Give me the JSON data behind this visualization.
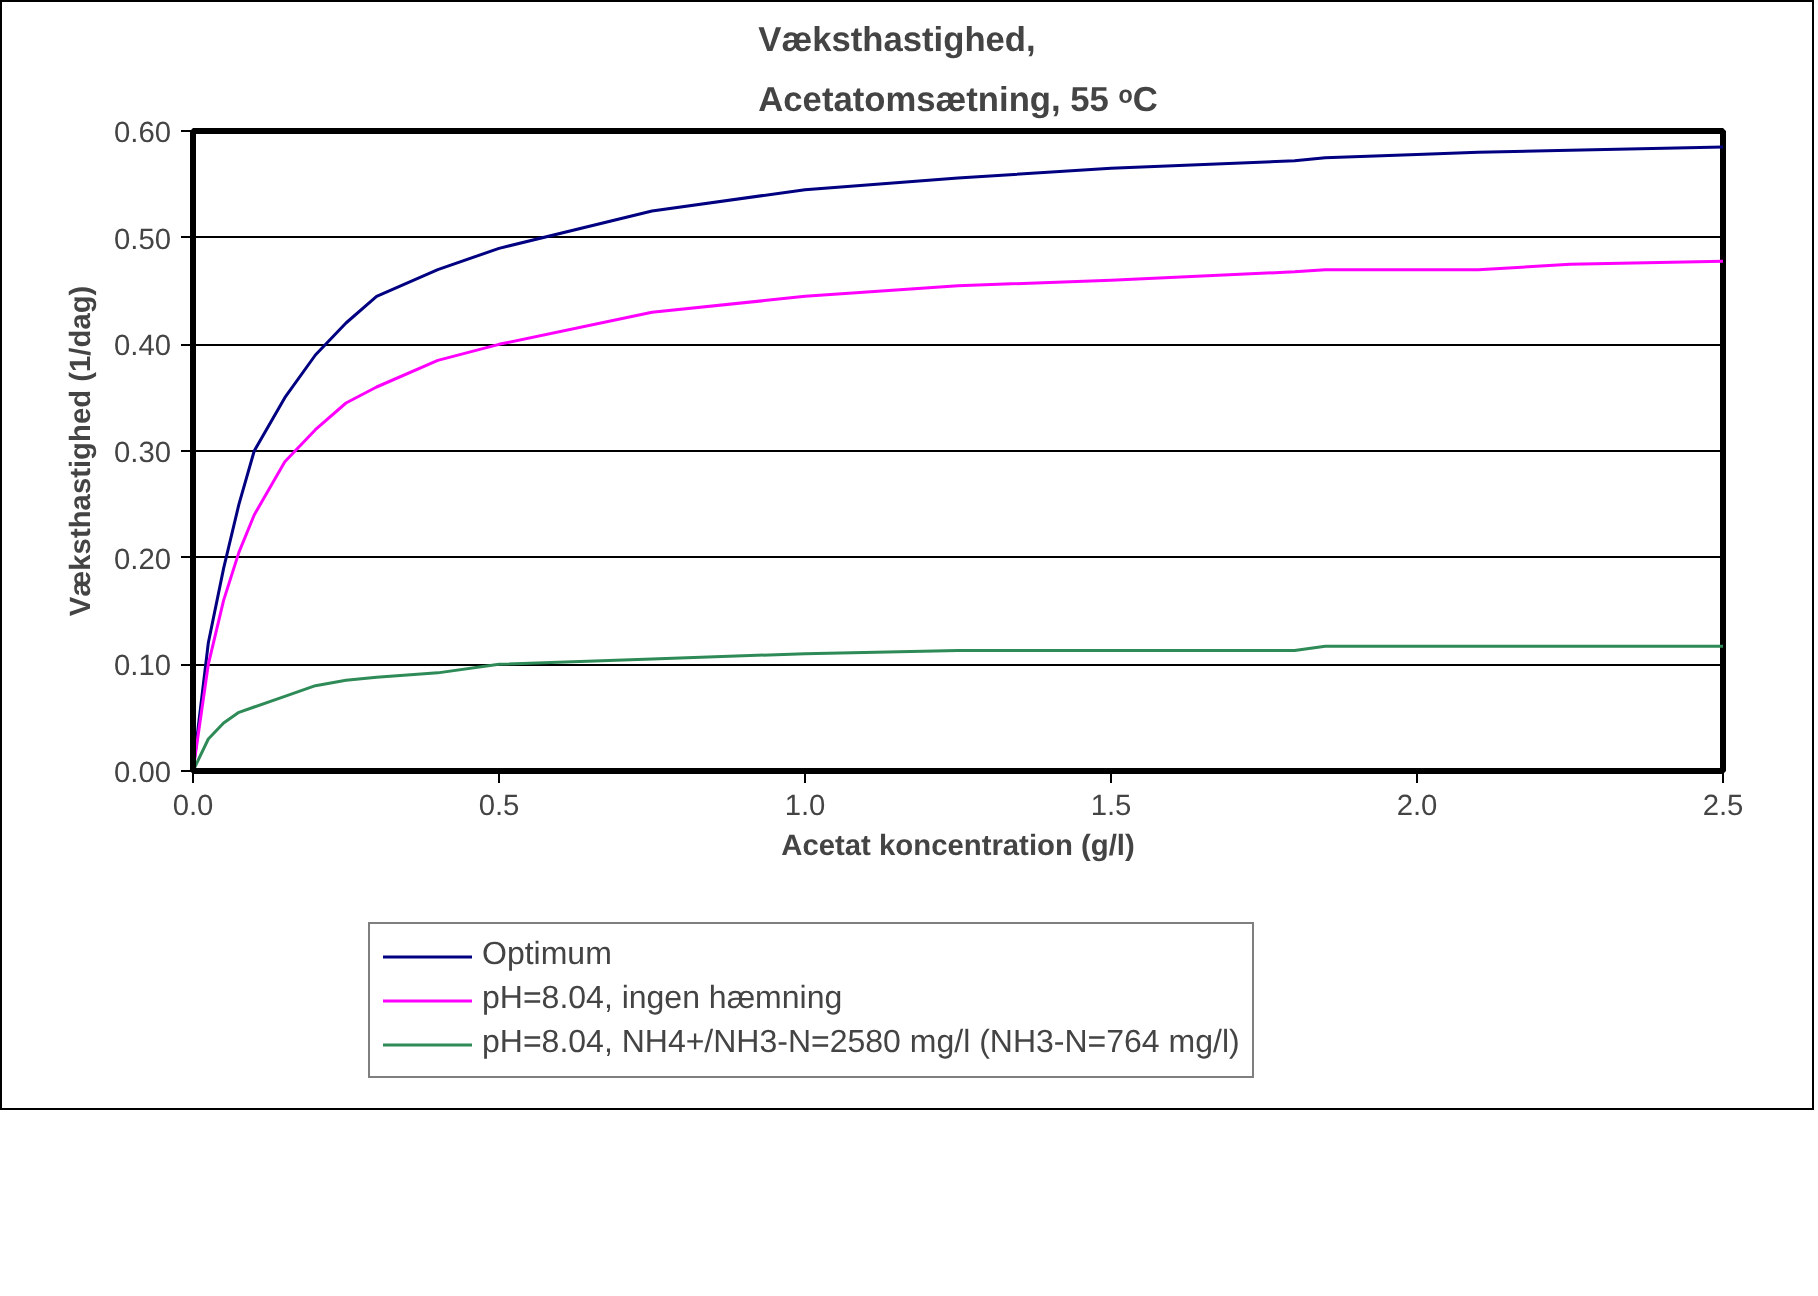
{
  "chart_data": {
    "type": "line",
    "title": "Væksthastighed,\nAcetatomsætning, 55 ᵒC",
    "xlabel": "Acetat koncentration (g/l)",
    "ylabel": "Væksthastighed (1/dag)",
    "x": [
      0,
      0.025,
      0.05,
      0.075,
      0.1,
      0.15,
      0.2,
      0.25,
      0.3,
      0.4,
      0.5,
      0.75,
      1.0,
      1.25,
      1.5,
      1.8,
      1.85,
      2.0,
      2.1,
      2.25,
      2.5
    ],
    "series": [
      {
        "name": "Optimum",
        "color": "#000080",
        "values": [
          0,
          0.12,
          0.19,
          0.25,
          0.3,
          0.35,
          0.39,
          0.42,
          0.445,
          0.47,
          0.49,
          0.525,
          0.545,
          0.556,
          0.565,
          0.572,
          0.575,
          0.578,
          0.58,
          0.582,
          0.585
        ]
      },
      {
        "name": "pH=8.04, ingen hæmning",
        "color": "#ff00ff",
        "values": [
          0,
          0.1,
          0.16,
          0.205,
          0.24,
          0.29,
          0.32,
          0.345,
          0.36,
          0.385,
          0.4,
          0.43,
          0.445,
          0.455,
          0.46,
          0.468,
          0.47,
          0.47,
          0.47,
          0.475,
          0.478
        ]
      },
      {
        "name": "pH=8.04, NH4+/NH3-N=2580 mg/l (NH3-N=764 mg/l)",
        "color": "#2e8b57",
        "values": [
          0,
          0.03,
          0.045,
          0.055,
          0.06,
          0.07,
          0.08,
          0.085,
          0.088,
          0.092,
          0.1,
          0.105,
          0.11,
          0.113,
          0.113,
          0.113,
          0.117,
          0.117,
          0.117,
          0.117,
          0.117
        ]
      }
    ],
    "xlim": [
      0,
      2.5
    ],
    "xticks": [
      {
        "value": 0,
        "label": "0.0"
      },
      {
        "value": 0.5,
        "label": "0.5"
      },
      {
        "value": 1,
        "label": "1.0"
      },
      {
        "value": 1.5,
        "label": "1.5"
      },
      {
        "value": 2,
        "label": "2.0"
      },
      {
        "value": 2.5,
        "label": "2.5"
      }
    ],
    "ylim": [
      0,
      0.6
    ],
    "yticks": [
      {
        "value": 0,
        "label": "0.00"
      },
      {
        "value": 0.1,
        "label": "0.10"
      },
      {
        "value": 0.2,
        "label": "0.20"
      },
      {
        "value": 0.3,
        "label": "0.30"
      },
      {
        "value": 0.4,
        "label": "0.40"
      },
      {
        "value": 0.5,
        "label": "0.50"
      },
      {
        "value": 0.6,
        "label": "0.60"
      }
    ],
    "grid": "y",
    "legend": "bottom",
    "marker": "none",
    "line_style": "solid"
  }
}
